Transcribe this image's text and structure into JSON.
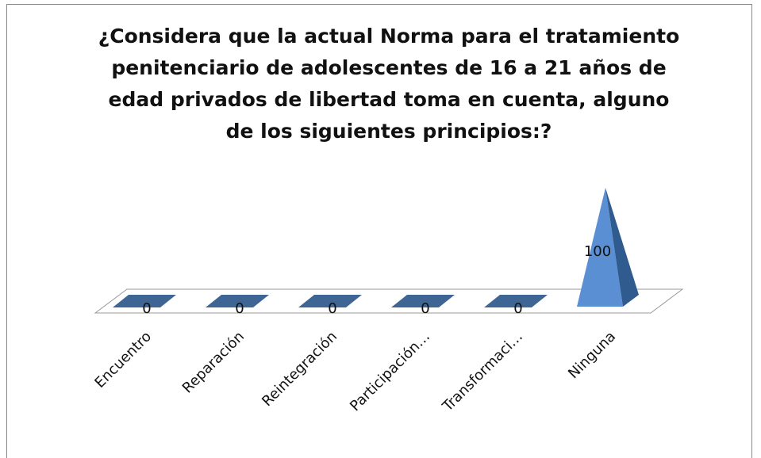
{
  "chart_data": {
    "type": "pyramid3d",
    "title": "¿Considera que la actual Norma para el tratamiento penitenciario de adolescentes de 16 a 21 años de edad privados de libertad toma en cuenta, alguno de los siguientes principios:?",
    "categories": [
      "Encuentro",
      "Reparación",
      "Reintegración",
      "Participación…",
      "Transformaci…",
      "Ninguna"
    ],
    "values": [
      0,
      0,
      0,
      0,
      0,
      100
    ],
    "color": "#4f81bd"
  }
}
